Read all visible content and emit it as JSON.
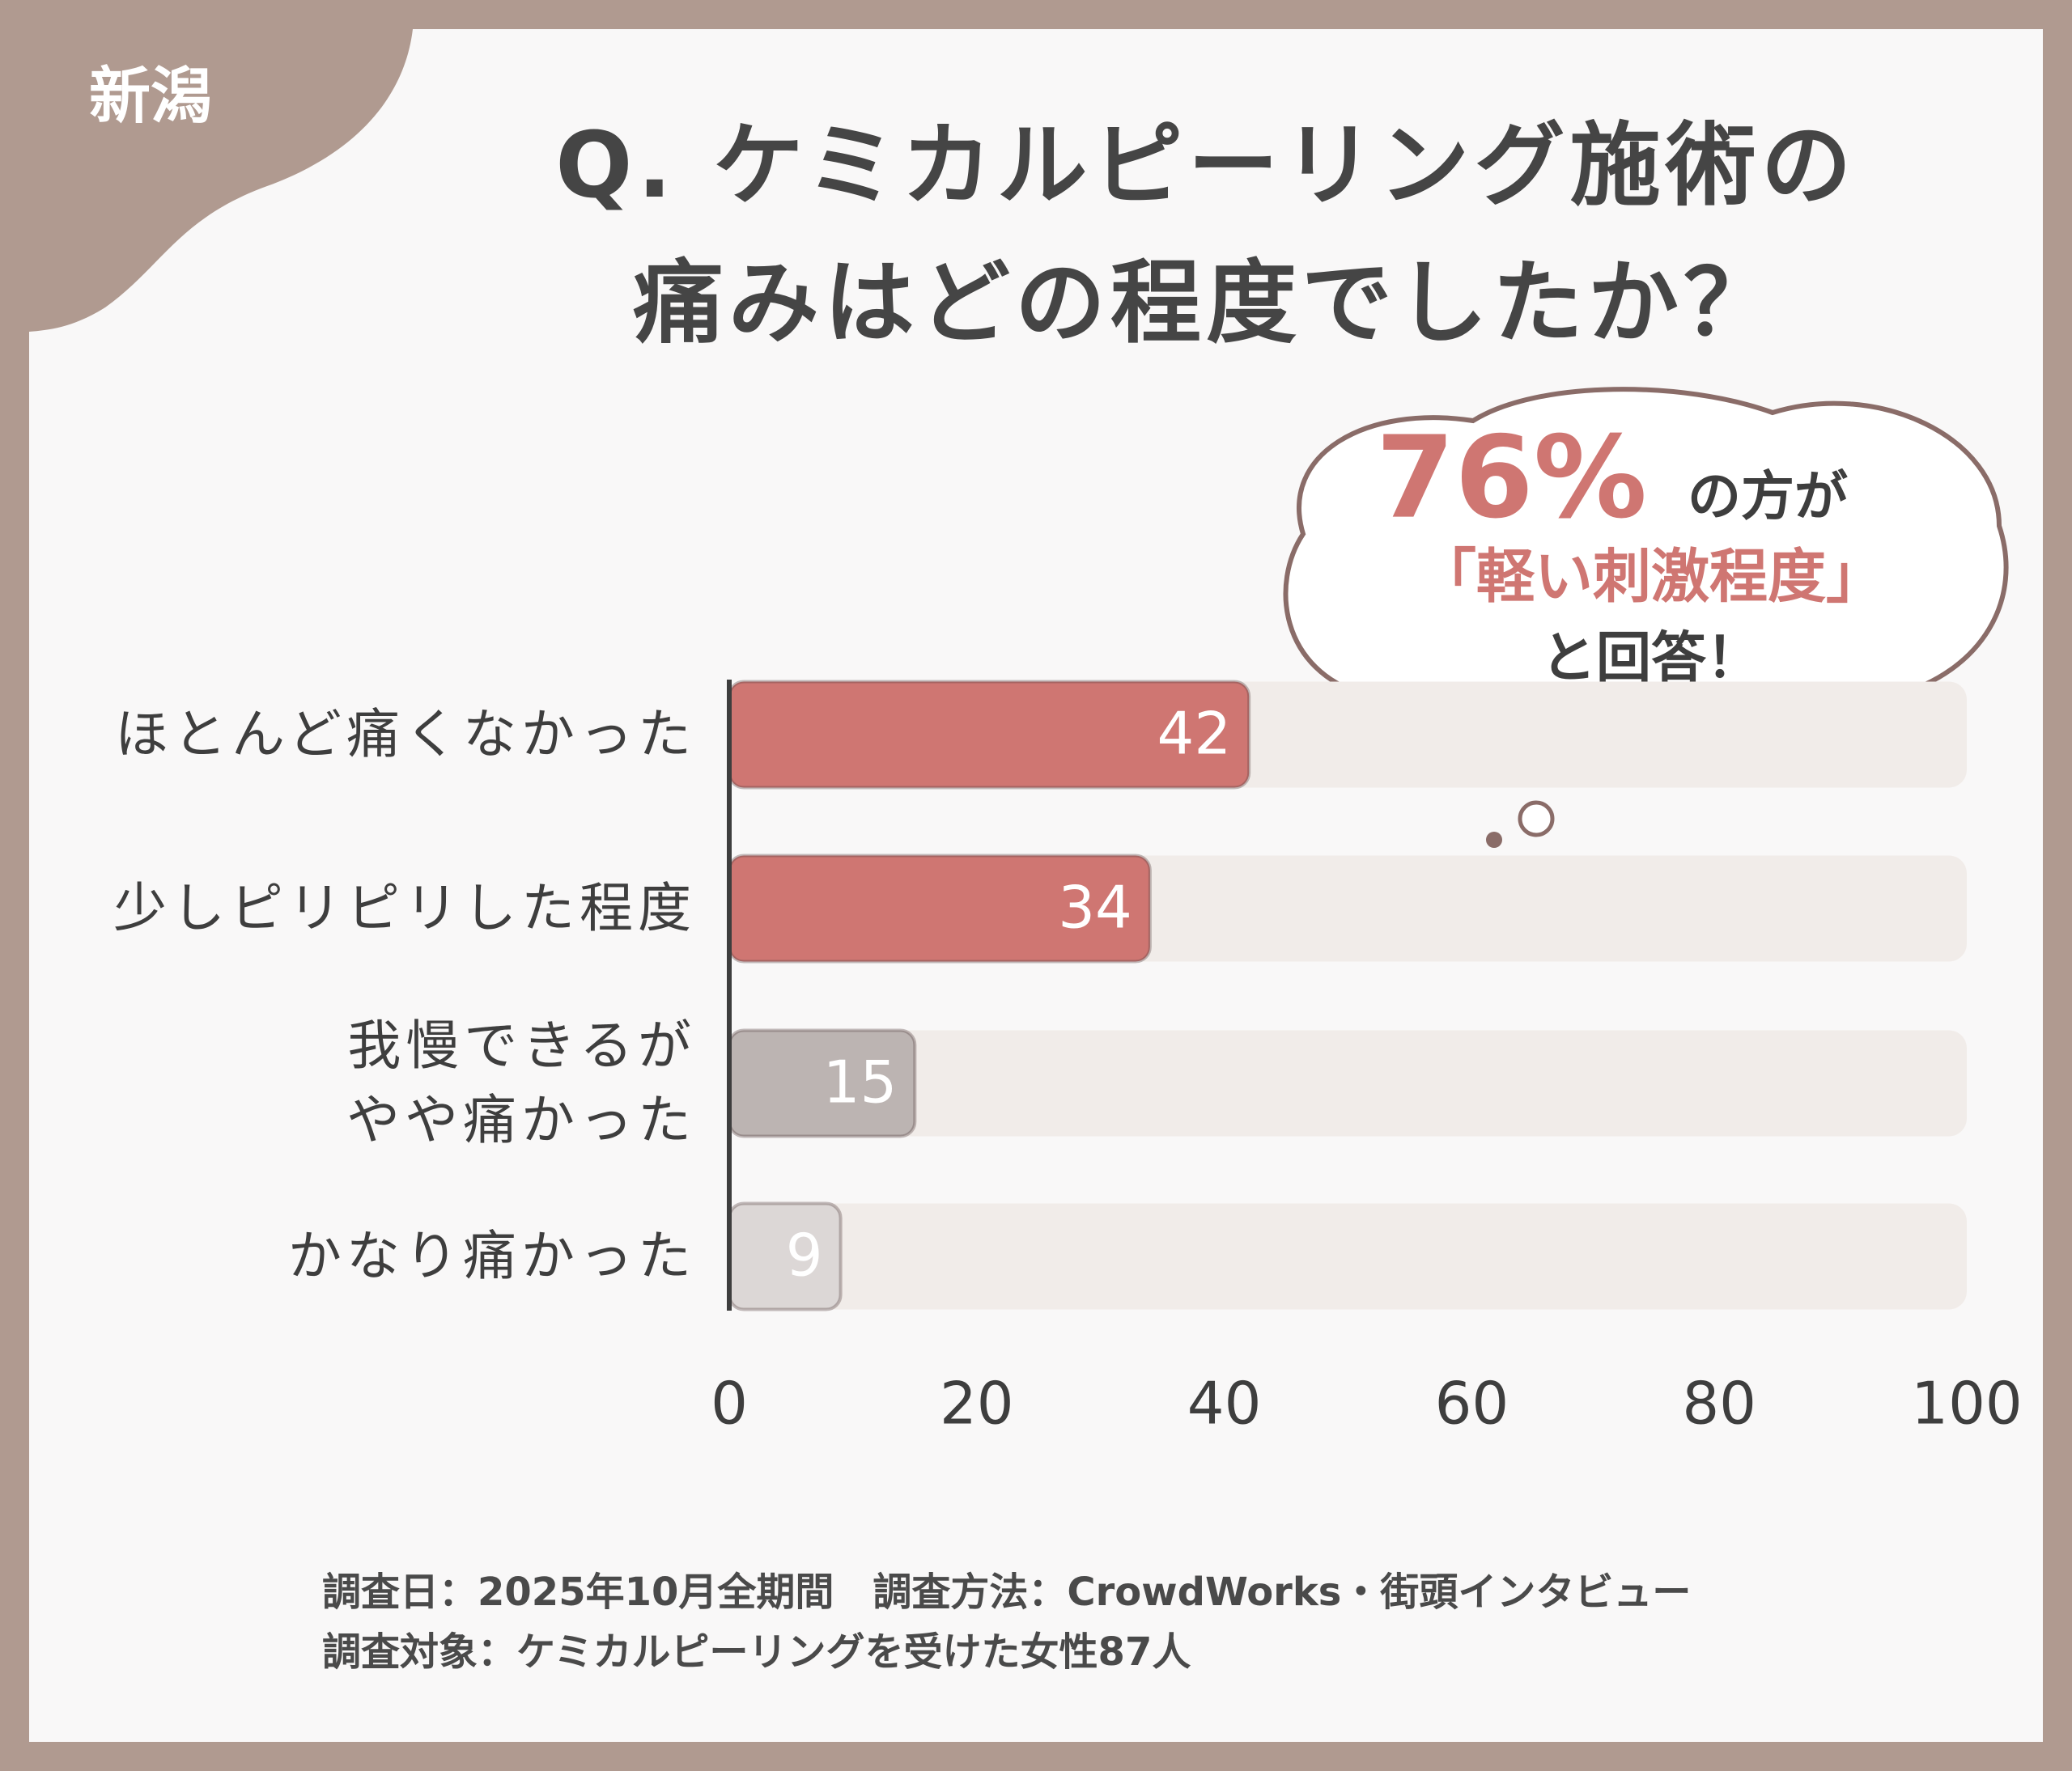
{
  "chart_data": {
    "type": "bar",
    "orientation": "horizontal",
    "tag": "新潟",
    "title": "Q. ケミカルピーリング施術の\n痛みはどの程度でしたか？",
    "callout": [
      "76%",
      "の方が",
      "「軽い刺激程度」",
      "と回答！"
    ],
    "categories": [
      "ほとんど痛くなかった",
      "少しピリピリした程度",
      "我慢できるが\nやや痛かった",
      "かなり痛かった"
    ],
    "values": [
      42,
      34,
      15,
      9
    ],
    "colors": [
      "#cf7672",
      "#cf7672",
      "#bcb4b2",
      "#dcd7d6"
    ],
    "xlim": [
      0,
      100
    ],
    "xticks": [
      0,
      20,
      40,
      60,
      80,
      100
    ],
    "grid": false,
    "notes": [
      "調査日：2025年10月全期間　調査方法：CrowdWorks・街頭インタビュー",
      "調査対象：ケミカルピーリングを受けた女性87人"
    ]
  }
}
